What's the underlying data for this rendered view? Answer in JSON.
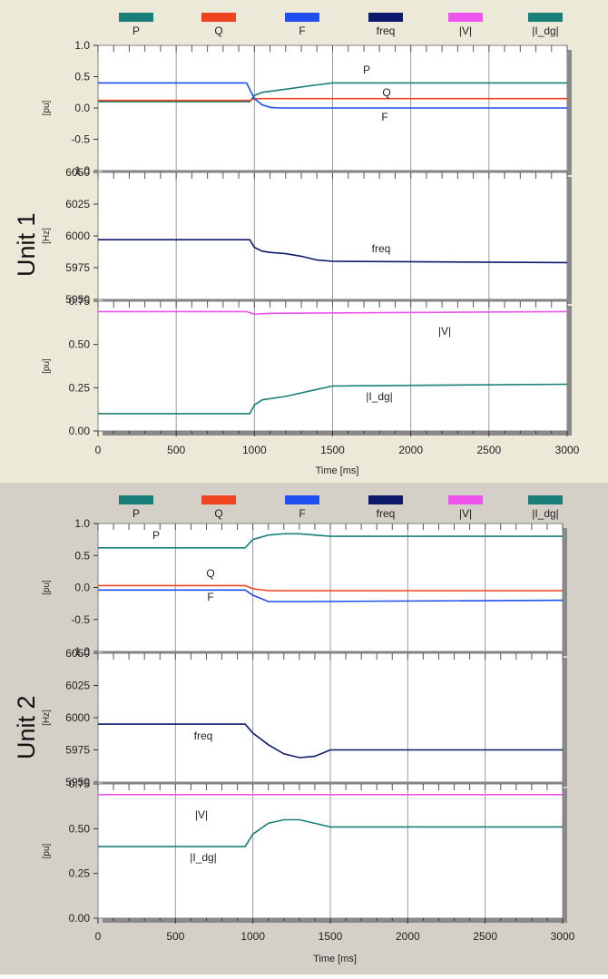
{
  "legend": [
    {
      "label": "P",
      "color": "#1a7f78"
    },
    {
      "label": "Q",
      "color": "#ee4422"
    },
    {
      "label": "F",
      "color": "#1f4fee"
    },
    {
      "label": "freq",
      "color": "#0d1a6b"
    },
    {
      "label": "|V|",
      "color": "#ee55ee"
    },
    {
      "label": "|I_dg|",
      "color": "#1a7f78"
    }
  ],
  "chart_data": [
    {
      "type": "line",
      "unit": "Unit 1",
      "x_axis": {
        "title": "Time  [ms]",
        "ticks": [
          "0",
          "500",
          "1000",
          "1500",
          "2000",
          "2500",
          "3000"
        ],
        "xlim": [
          0,
          3000
        ]
      },
      "grid": "vertical",
      "subplots": [
        {
          "ylabel": "[pu]",
          "ylim": [
            -1.0,
            1.0
          ],
          "yticks": [
            "1.0",
            "0.5",
            "0.0",
            "-0.5",
            "-1.0"
          ],
          "series": [
            {
              "name": "P",
              "color": "#1a7f78",
              "x": [
                0,
                970,
                1000,
                1050,
                1200,
                1400,
                1500,
                3000
              ],
              "y": [
                0.1,
                0.1,
                0.2,
                0.25,
                0.3,
                0.37,
                0.4,
                0.4
              ]
            },
            {
              "name": "Q",
              "color": "#ee4422",
              "x": [
                0,
                970,
                1000,
                1100,
                3000
              ],
              "y": [
                0.12,
                0.12,
                0.15,
                0.15,
                0.15
              ]
            },
            {
              "name": "F",
              "color": "#1f4fee",
              "x": [
                0,
                950,
                1000,
                1050,
                1100,
                1150,
                3000
              ],
              "y": [
                0.4,
                0.4,
                0.15,
                0.05,
                0.01,
                0.0,
                0.0
              ]
            }
          ],
          "annotations": [
            {
              "text": "P"
            },
            {
              "text": "Q"
            },
            {
              "text": "F"
            }
          ]
        },
        {
          "ylabel": "[Hz]",
          "ylim": [
            5950,
            6050
          ],
          "yticks": [
            "6050",
            "6025",
            "6000",
            "5975",
            "5950"
          ],
          "series": [
            {
              "name": "freq",
              "color": "#0d1a6b",
              "x": [
                0,
                970,
                1000,
                1050,
                1100,
                1200,
                1300,
                1400,
                1500,
                3000
              ],
              "y": [
                5997,
                5997,
                5991,
                5988,
                5987,
                5986,
                5984,
                5981,
                5980,
                5979
              ]
            }
          ],
          "annotations": [
            {
              "text": "freq"
            }
          ]
        },
        {
          "ylabel": "[pu]",
          "ylim": [
            0.0,
            0.75
          ],
          "yticks": [
            "0.75",
            "0.50",
            "0.25",
            "0.00"
          ],
          "series": [
            {
              "name": "|V|",
              "color": "#ee55ee",
              "x": [
                0,
                950,
                1000,
                1100,
                3000
              ],
              "y": [
                0.69,
                0.69,
                0.675,
                0.68,
                0.69
              ]
            },
            {
              "name": "|I_dg|",
              "color": "#1a7f78",
              "x": [
                0,
                970,
                1000,
                1050,
                1200,
                1400,
                1500,
                3000
              ],
              "y": [
                0.1,
                0.1,
                0.15,
                0.18,
                0.2,
                0.24,
                0.26,
                0.27
              ]
            }
          ],
          "annotations": [
            {
              "text": "|V|"
            },
            {
              "text": "|I_dg|"
            }
          ]
        }
      ]
    },
    {
      "type": "line",
      "unit": "Unit 2",
      "x_axis": {
        "title": "Time  [ms]",
        "ticks": [
          "0",
          "500",
          "1000",
          "1500",
          "2000",
          "2500",
          "3000"
        ],
        "xlim": [
          0,
          3000
        ]
      },
      "grid": "vertical",
      "subplots": [
        {
          "ylabel": "[pu]",
          "ylim": [
            -1.0,
            1.0
          ],
          "yticks": [
            "1.0",
            "0.5",
            "0.0",
            "-0.5",
            "-1.0"
          ],
          "series": [
            {
              "name": "P",
              "color": "#1a7f78",
              "x": [
                0,
                950,
                1000,
                1100,
                1200,
                1300,
                1500,
                3000
              ],
              "y": [
                0.62,
                0.62,
                0.75,
                0.82,
                0.84,
                0.84,
                0.8,
                0.8
              ]
            },
            {
              "name": "Q",
              "color": "#ee4422",
              "x": [
                0,
                950,
                1000,
                1100,
                1300,
                3000
              ],
              "y": [
                0.03,
                0.03,
                -0.02,
                -0.05,
                -0.05,
                -0.05
              ]
            },
            {
              "name": "F",
              "color": "#1f4fee",
              "x": [
                0,
                950,
                1000,
                1100,
                1300,
                3000
              ],
              "y": [
                -0.04,
                -0.04,
                -0.12,
                -0.22,
                -0.22,
                -0.2
              ]
            }
          ],
          "annotations": [
            {
              "text": "P"
            },
            {
              "text": "Q"
            },
            {
              "text": "F"
            }
          ]
        },
        {
          "ylabel": "[Hz]",
          "ylim": [
            5950,
            6050
          ],
          "yticks": [
            "6050",
            "6025",
            "6000",
            "5975",
            "5950"
          ],
          "series": [
            {
              "name": "freq",
              "color": "#0d1a6b",
              "x": [
                0,
                950,
                1000,
                1100,
                1200,
                1300,
                1400,
                1500,
                3000
              ],
              "y": [
                5995,
                5995,
                5988,
                5979,
                5972,
                5969,
                5970,
                5975,
                5975
              ]
            }
          ],
          "annotations": [
            {
              "text": "freq"
            }
          ]
        },
        {
          "ylabel": "[pu]",
          "ylim": [
            0.0,
            0.75
          ],
          "yticks": [
            "0.75",
            "0.50",
            "0.25",
            "0.00"
          ],
          "series": [
            {
              "name": "|V|",
              "color": "#ee55ee",
              "x": [
                0,
                3000
              ],
              "y": [
                0.69,
                0.69
              ]
            },
            {
              "name": "|I_dg|",
              "color": "#1a7f78",
              "x": [
                0,
                950,
                1000,
                1100,
                1200,
                1300,
                1400,
                1500,
                3000
              ],
              "y": [
                0.4,
                0.4,
                0.47,
                0.53,
                0.55,
                0.55,
                0.53,
                0.51,
                0.51
              ]
            }
          ],
          "annotations": [
            {
              "text": "|V|"
            },
            {
              "text": "|I_dg|"
            }
          ]
        }
      ]
    }
  ]
}
